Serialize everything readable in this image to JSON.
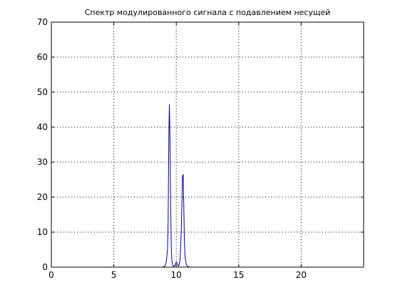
{
  "chart_data": {
    "type": "line",
    "title": "Спектр модулированного сигнала с подавлением несущей",
    "xlabel": "",
    "ylabel": "",
    "xlim": [
      0,
      25
    ],
    "ylim": [
      0,
      70
    ],
    "x_ticks": [
      0,
      5,
      10,
      15,
      20
    ],
    "y_ticks": [
      0,
      10,
      20,
      30,
      40,
      50,
      60,
      70
    ],
    "grid": true,
    "grid_style": "dotted",
    "colors": {
      "line": "#00008b",
      "axes": "#000000",
      "grid": "#000000"
    },
    "series": [
      {
        "x": [
          0,
          8.9,
          9.1,
          9.2,
          9.3,
          9.35,
          9.4,
          9.45,
          9.5,
          9.55,
          9.6,
          9.65,
          9.7,
          9.8,
          9.9,
          10.0,
          10.1,
          10.2,
          10.3,
          10.4,
          10.45,
          10.5,
          10.55,
          10.6,
          10.65,
          10.7,
          10.8,
          10.9,
          11.1,
          25
        ],
        "y": [
          0,
          0,
          0.3,
          1.5,
          5,
          13,
          36,
          46.5,
          36,
          18,
          6,
          2,
          0.6,
          0.2,
          0.5,
          1.5,
          0.8,
          0.3,
          2,
          10,
          18,
          26,
          26.5,
          18,
          8,
          3,
          0.8,
          0.2,
          0,
          0
        ]
      }
    ]
  }
}
